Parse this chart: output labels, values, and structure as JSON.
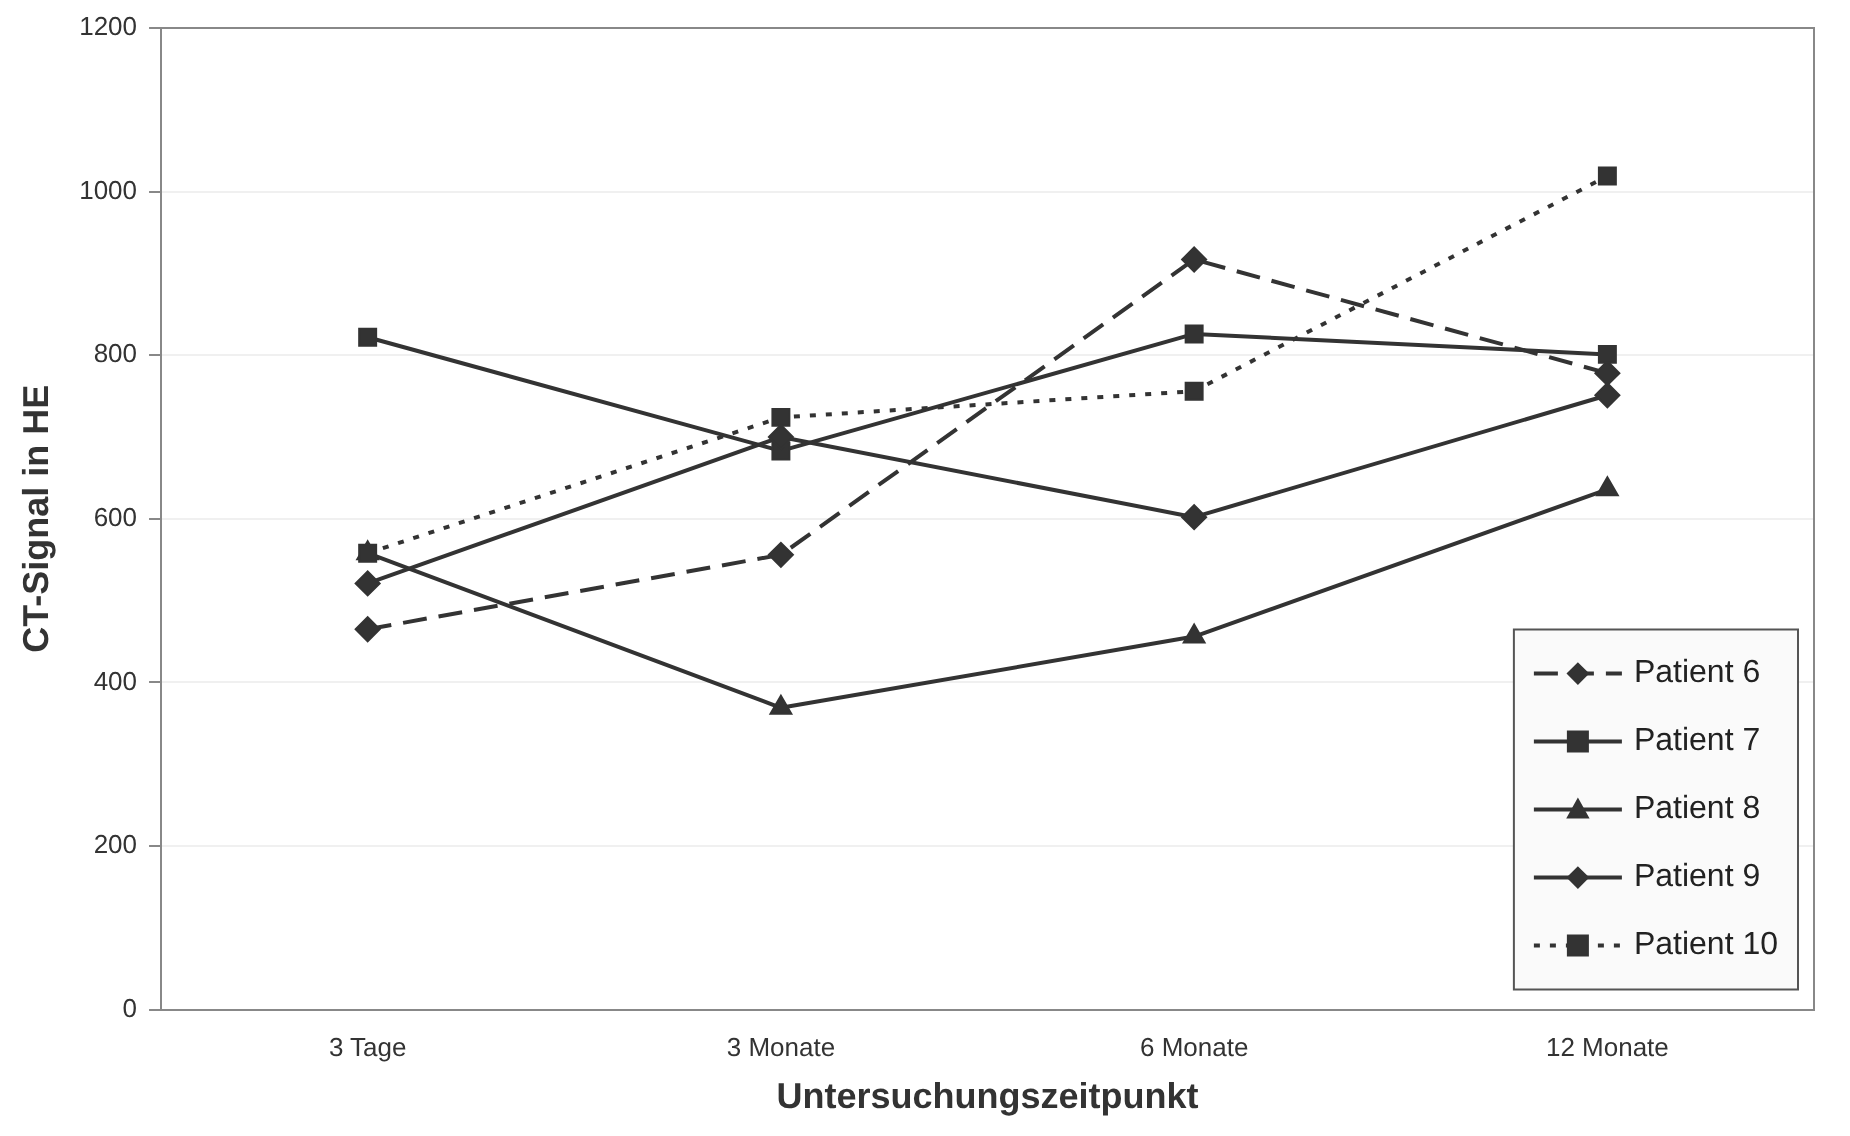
{
  "chart_data": {
    "type": "line",
    "xlabel": "Untersuchungszeitpunkt",
    "ylabel": "CT-Signal in HE",
    "categories": [
      "3 Tage",
      "3 Monate",
      "6 Monate",
      "12 Monate"
    ],
    "series": [
      {
        "name": "Patient 6",
        "color": "#333333",
        "values": [
          465,
          556,
          917,
          778
        ],
        "marker": "diamond",
        "line_style": "dashed"
      },
      {
        "name": "Patient 7",
        "color": "#333333",
        "values": [
          822,
          683,
          826,
          801
        ],
        "marker": "square",
        "line_style": "solid"
      },
      {
        "name": "Patient 8",
        "color": "#333333",
        "values": [
          558,
          369,
          456,
          636
        ],
        "marker": "triangle",
        "line_style": "solid"
      },
      {
        "name": "Patient 9",
        "color": "#333333",
        "values": [
          521,
          700,
          602,
          751
        ],
        "marker": "diamond",
        "line_style": "solid"
      },
      {
        "name": "Patient 10",
        "color": "#333333",
        "values": [
          558,
          724,
          756,
          1019
        ],
        "marker": "square",
        "line_style": "dotted"
      }
    ],
    "ylim": [
      0,
      1200
    ],
    "yticks": [
      0,
      200,
      400,
      600,
      800,
      1000,
      1200
    ],
    "grid": "y",
    "legend": "bottom right"
  }
}
